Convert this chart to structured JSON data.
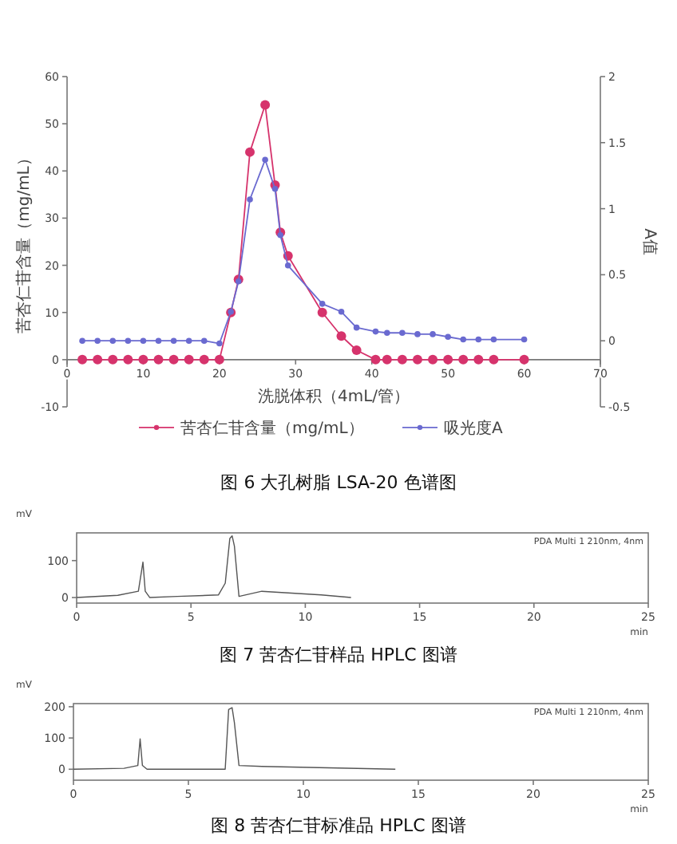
{
  "chart_data": [
    {
      "type": "line",
      "title": "图 6 大孔树脂 LSA-20 色谱图",
      "xlabel": "洗脱体积（4mL/管）",
      "ylabel": "苦杏仁苷含量（mg/mL）",
      "y2label": "A值",
      "xlim": [
        0,
        70
      ],
      "xticks": [
        0,
        10,
        20,
        30,
        40,
        50,
        60,
        70
      ],
      "ylim": [
        -10,
        60
      ],
      "yticks": [
        -10,
        0,
        10,
        20,
        30,
        40,
        50,
        60
      ],
      "y2lim": [
        -0.5,
        2
      ],
      "y2ticks": [
        -0.5,
        0,
        0.5,
        1,
        1.5,
        2
      ],
      "legend": "bottom",
      "marker": "circle",
      "grid": false,
      "series": [
        {
          "name": "苦杏仁苷含量（mg/mL）",
          "color": "#d6336c",
          "x": [
            2,
            4,
            6,
            8,
            10,
            12,
            14,
            16,
            18,
            20,
            21.5,
            22.5,
            24,
            26,
            27.3,
            28,
            29,
            33.5,
            36,
            38,
            40.5,
            42,
            44,
            46,
            48,
            50,
            52,
            54,
            56,
            60
          ],
          "values": [
            0,
            0,
            0,
            0,
            0,
            0,
            0,
            0,
            0,
            0,
            10,
            17,
            44,
            54,
            37,
            27,
            22,
            10,
            5,
            2,
            0,
            0,
            0,
            0,
            0,
            0,
            0,
            0,
            0,
            0
          ]
        },
        {
          "name": "吸光度A",
          "color": "#6a6ad0",
          "axis": "y2",
          "x": [
            2,
            4,
            6,
            8,
            10,
            12,
            14,
            16,
            18,
            20,
            21.5,
            22.5,
            24,
            26,
            27.3,
            28,
            29,
            33.5,
            36,
            38,
            40.5,
            42,
            44,
            46,
            48,
            50,
            52,
            54,
            56,
            60
          ],
          "values": [
            0,
            0,
            0,
            0,
            0,
            0,
            0,
            0,
            0,
            -0.02,
            0.22,
            0.45,
            1.07,
            1.37,
            1.15,
            0.8,
            0.57,
            0.28,
            0.22,
            0.1,
            0.07,
            0.06,
            0.06,
            0.05,
            0.05,
            0.03,
            0.01,
            0.01,
            0.01,
            0.01
          ]
        }
      ]
    },
    {
      "type": "line",
      "title": "图 7 苦杏仁苷样品 HPLC 图谱",
      "xlabel": "min",
      "ylabel": "mV",
      "xlim": [
        0,
        25
      ],
      "xticks": [
        0,
        5,
        10,
        15,
        20,
        25
      ],
      "ylim": [
        -15,
        175
      ],
      "yticks": [
        0,
        100
      ],
      "annotations": [
        "PDA Multi 1 210nm, 4nm"
      ],
      "series": [
        {
          "color": "#555555",
          "x": [
            0,
            1.8,
            2.7,
            2.9,
            3.0,
            3.2,
            4.4,
            6.2,
            6.5,
            6.7,
            6.8,
            6.9,
            7.1,
            8.1,
            10.7,
            12
          ],
          "values": [
            0,
            6,
            17,
            96,
            17,
            0,
            3,
            7,
            39,
            160,
            167,
            139,
            3,
            17,
            7,
            0
          ]
        }
      ]
    },
    {
      "type": "line",
      "title": "图 8 苦杏仁苷标准品 HPLC 图谱",
      "xlabel": "min",
      "ylabel": "mV",
      "xlim": [
        0,
        25
      ],
      "xticks": [
        0,
        5,
        10,
        15,
        20,
        25
      ],
      "ylim": [
        -35,
        210
      ],
      "yticks": [
        0,
        100,
        200
      ],
      "annotations": [
        "PDA Multi 1 210nm, 4nm"
      ],
      "series": [
        {
          "color": "#555555",
          "x": [
            0,
            2.2,
            2.8,
            2.9,
            3.0,
            3.2,
            6.6,
            6.75,
            6.9,
            7.0,
            7.2,
            8.2,
            14
          ],
          "values": [
            0,
            3,
            12,
            97,
            12,
            0,
            0,
            191,
            197,
            149,
            12,
            9,
            0
          ]
        }
      ]
    }
  ]
}
